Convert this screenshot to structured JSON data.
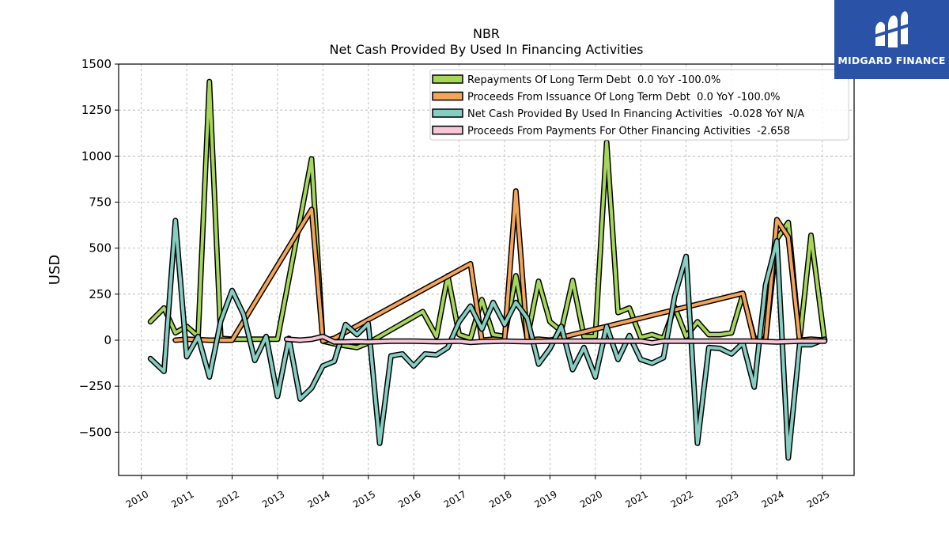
{
  "brand": {
    "name": "MIDGARD FINANCE",
    "bg_color": "#2a52a6"
  },
  "chart_data": {
    "type": "line",
    "title": "NBR",
    "subtitle": "Net Cash Provided By Used In Financing Activities",
    "ylabel": "USD",
    "xlabel": "",
    "ylim": [
      -735,
      1500
    ],
    "xlim": [
      2009.5,
      2025.7
    ],
    "y_ticks": [
      -500,
      -250,
      0,
      250,
      500,
      750,
      1000,
      1250,
      1500
    ],
    "y_tick_labels": [
      "−500",
      "−250",
      "0",
      "250",
      "500",
      "750",
      "1000",
      "1250",
      "1500"
    ],
    "x_ticks": [
      2010,
      2011,
      2012,
      2013,
      2014,
      2015,
      2016,
      2017,
      2018,
      2019,
      2020,
      2021,
      2022,
      2023,
      2024,
      2025
    ],
    "x_tick_labels": [
      "2010",
      "2011",
      "2012",
      "2013",
      "2014",
      "2015",
      "2016",
      "2017",
      "2018",
      "2019",
      "2020",
      "2021",
      "2022",
      "2023",
      "2024",
      "2025"
    ],
    "grid": true,
    "legend_position": "top-right",
    "series": [
      {
        "name": "Repayments Of Long Term Debt  0.0 YoY -100.0%",
        "color": "#a6d75b",
        "x": [
          2010.2,
          2010.5,
          2010.75,
          2011.0,
          2011.25,
          2011.5,
          2011.75,
          2012.0,
          2012.25,
          2012.5,
          2012.75,
          2013.0,
          2013.75,
          2014.0,
          2014.25,
          2014.5,
          2014.75,
          2015.0,
          2016.2,
          2016.5,
          2016.75,
          2017.0,
          2017.25,
          2017.5,
          2017.75,
          2018.0,
          2018.25,
          2018.5,
          2018.75,
          2019.0,
          2019.25,
          2019.5,
          2019.75,
          2020.0,
          2020.25,
          2020.5,
          2020.75,
          2021.0,
          2021.25,
          2021.5,
          2021.75,
          2022.0,
          2022.25,
          2022.5,
          2022.75,
          2023.0,
          2023.25,
          2023.5,
          2023.75,
          2024.0,
          2024.25,
          2024.5,
          2024.75,
          2025.05
        ],
        "y": [
          100,
          175,
          40,
          75,
          20,
          1405,
          10,
          5,
          5,
          5,
          5,
          5,
          985,
          -5,
          -20,
          -30,
          -40,
          -15,
          155,
          20,
          350,
          30,
          10,
          220,
          30,
          20,
          350,
          10,
          320,
          100,
          50,
          325,
          20,
          20,
          1075,
          150,
          175,
          15,
          30,
          10,
          180,
          20,
          100,
          30,
          30,
          40,
          250,
          10,
          5,
          550,
          640,
          -5,
          570,
          -5
        ]
      },
      {
        "name": "Proceeds From Issuance Of Long Term Debt  0.0 YoY -100.0%",
        "color": "#f5a55a",
        "x": [
          2010.75,
          2011.0,
          2011.5,
          2012.0,
          2013.75,
          2014.0,
          2014.25,
          2017.25,
          2017.5,
          2017.75,
          2018.0,
          2018.25,
          2018.5,
          2018.75,
          2019.0,
          2023.25,
          2023.5,
          2023.75,
          2024.0,
          2024.25,
          2024.5,
          2024.75,
          2025.05
        ],
        "y": [
          0,
          5,
          0,
          0,
          710,
          -5,
          10,
          415,
          0,
          5,
          0,
          810,
          0,
          5,
          0,
          255,
          0,
          0,
          655,
          560,
          0,
          5,
          0
        ]
      },
      {
        "name": "Net Cash Provided By Used In Financing Activities  -0.028 YoY N/A",
        "color": "#86cdc2",
        "x": [
          2010.2,
          2010.5,
          2010.75,
          2011.0,
          2011.25,
          2011.5,
          2011.75,
          2012.0,
          2012.25,
          2012.5,
          2012.75,
          2013.0,
          2013.25,
          2013.5,
          2013.75,
          2014.0,
          2014.25,
          2014.5,
          2014.75,
          2015.0,
          2015.25,
          2015.5,
          2015.75,
          2016.0,
          2016.25,
          2016.5,
          2016.75,
          2017.0,
          2017.25,
          2017.5,
          2017.75,
          2018.0,
          2018.25,
          2018.5,
          2018.75,
          2019.0,
          2019.25,
          2019.5,
          2019.75,
          2020.0,
          2020.25,
          2020.5,
          2020.75,
          2021.0,
          2021.25,
          2021.5,
          2021.75,
          2022.0,
          2022.25,
          2022.5,
          2022.75,
          2023.0,
          2023.25,
          2023.5,
          2023.75,
          2024.0,
          2024.25,
          2024.5,
          2024.75,
          2025.05
        ],
        "y": [
          -100,
          -170,
          650,
          -90,
          20,
          -200,
          105,
          270,
          140,
          -110,
          20,
          -305,
          10,
          -320,
          -260,
          -140,
          -115,
          85,
          30,
          90,
          -560,
          -85,
          -75,
          -140,
          -75,
          -80,
          -40,
          100,
          185,
          60,
          205,
          85,
          205,
          120,
          -130,
          -45,
          75,
          -160,
          -40,
          -200,
          75,
          -105,
          25,
          -105,
          -125,
          -95,
          240,
          455,
          -560,
          -40,
          -45,
          -75,
          -15,
          -255,
          300,
          540,
          -640,
          -25,
          -25,
          5
        ]
      },
      {
        "name": "Proceeds From Payments For Other Financing Activities  -2.658",
        "color": "#f7c6d9",
        "x": [
          2013.2,
          2013.5,
          2013.75,
          2014.0,
          2014.25,
          2014.5,
          2014.75,
          2015.0,
          2015.5,
          2016.0,
          2016.5,
          2017.0,
          2017.25,
          2017.5,
          2018.0,
          2018.5,
          2019.0,
          2019.5,
          2020.0,
          2020.5,
          2021.0,
          2021.25,
          2021.5,
          2022.0,
          2022.5,
          2023.0,
          2023.5,
          2024.0,
          2024.5,
          2025.05
        ],
        "y": [
          5,
          0,
          5,
          20,
          -10,
          -10,
          -8,
          -10,
          -5,
          -5,
          -8,
          -5,
          -12,
          -8,
          -5,
          -8,
          -5,
          -5,
          -5,
          -5,
          -5,
          -15,
          -5,
          -5,
          -5,
          -5,
          -5,
          -10,
          -5,
          -5
        ]
      }
    ]
  }
}
